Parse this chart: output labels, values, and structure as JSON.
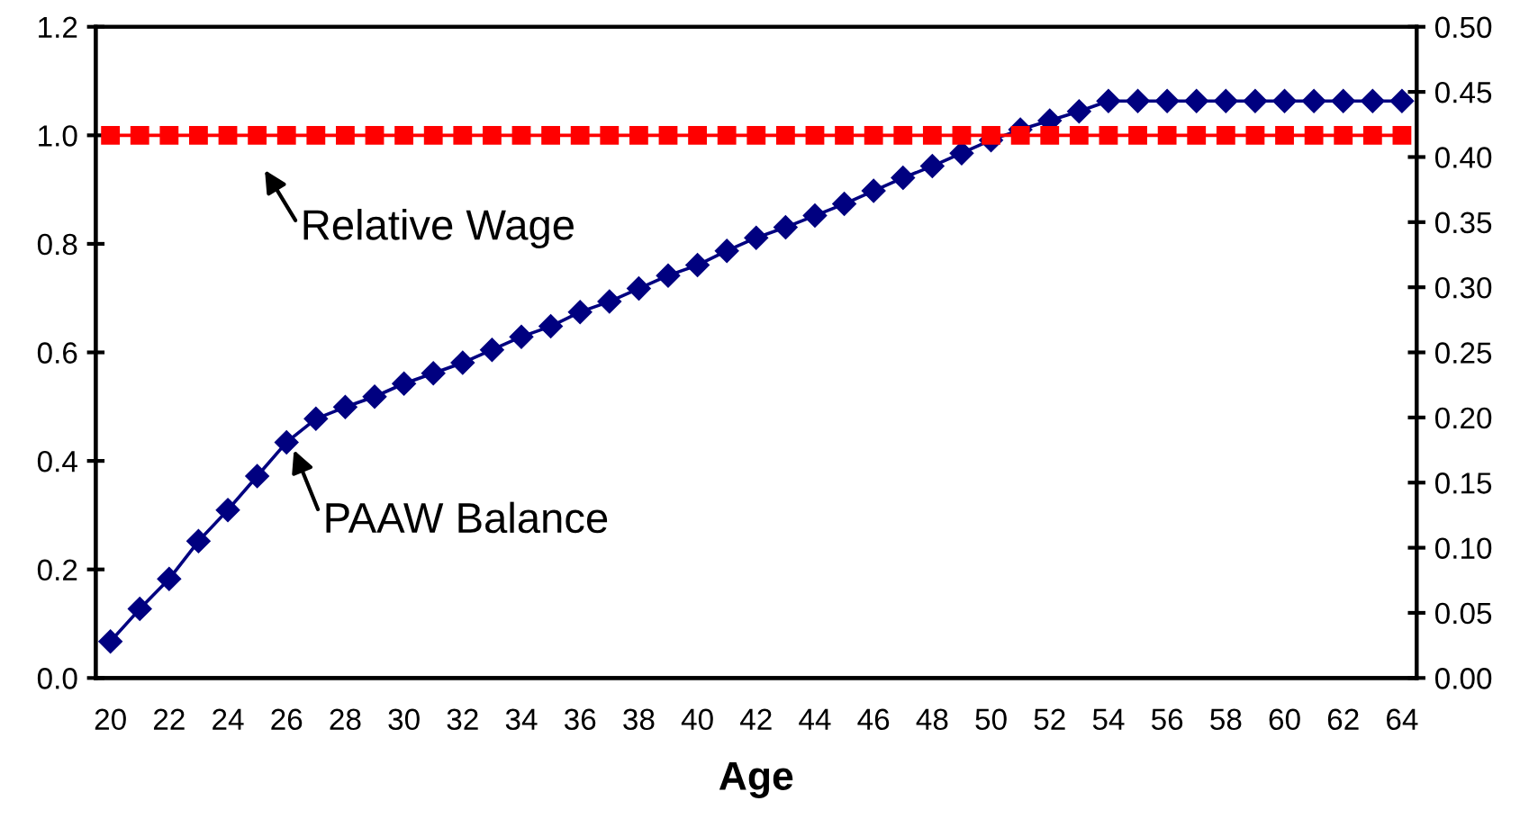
{
  "chart_data": {
    "type": "line",
    "xlabel": "Age",
    "categories": [
      "20",
      null,
      "22",
      null,
      "24",
      null,
      "26",
      null,
      "28",
      null,
      "30",
      null,
      "32",
      null,
      "34",
      null,
      "36",
      null,
      "38",
      null,
      "40",
      null,
      "42",
      null,
      "44",
      null,
      "46",
      null,
      "48",
      null,
      "50",
      null,
      "52",
      null,
      "54",
      null,
      "56",
      null,
      "58",
      null,
      "60",
      null,
      "62",
      null,
      "64"
    ],
    "series": [
      {
        "name": "Relative Wage",
        "color": "#ff0000",
        "marker": "square",
        "axis": "y",
        "values": [
          1.0,
          1.0,
          1.0,
          1.0,
          1.0,
          1.0,
          1.0,
          1.0,
          1.0,
          1.0,
          1.0,
          1.0,
          1.0,
          1.0,
          1.0,
          1.0,
          1.0,
          1.0,
          1.0,
          1.0,
          1.0,
          1.0,
          1.0,
          1.0,
          1.0,
          1.0,
          1.0,
          1.0,
          1.0,
          1.0,
          1.0,
          1.0,
          1.0,
          1.0,
          1.0,
          1.0,
          1.0,
          1.0,
          1.0,
          1.0,
          1.0,
          1.0,
          1.0,
          1.0,
          1.0
        ]
      },
      {
        "name": "PAAW Balance",
        "color": "#000080",
        "marker": "diamond",
        "axis": "y2",
        "values": [
          0.028,
          0.053,
          0.076,
          0.105,
          0.129,
          0.155,
          0.181,
          0.199,
          0.208,
          0.216,
          0.226,
          0.234,
          0.242,
          0.252,
          0.262,
          0.27,
          0.281,
          0.289,
          0.299,
          0.309,
          0.317,
          0.328,
          0.338,
          0.346,
          0.355,
          0.364,
          0.374,
          0.384,
          0.393,
          0.403,
          0.413,
          0.421,
          0.428,
          0.435,
          0.443,
          0.443,
          0.443,
          0.443,
          0.443,
          0.443,
          0.443,
          0.443,
          0.443,
          0.443,
          0.443
        ]
      }
    ],
    "ylim": [
      0,
      1.2
    ],
    "yticks": [
      {
        "value": 0,
        "label": "0.0"
      },
      0.2,
      0.4,
      0.6,
      0.8,
      {
        "value": 1,
        "label": "1.0"
      },
      1.2
    ],
    "y2lim": [
      0,
      0.5
    ],
    "y2ticks": [
      {
        "value": 0,
        "label": "0.00"
      },
      0.05,
      {
        "value": 0.1,
        "label": "0.10"
      },
      0.15,
      {
        "value": 0.2,
        "label": "0.20"
      },
      0.25,
      {
        "value": 0.3,
        "label": "0.30"
      },
      0.35,
      {
        "value": 0.4,
        "label": "0.40"
      },
      0.45,
      {
        "value": 0.5,
        "label": "0.50"
      }
    ],
    "grid": false,
    "legend": false,
    "line_style": "solid"
  }
}
